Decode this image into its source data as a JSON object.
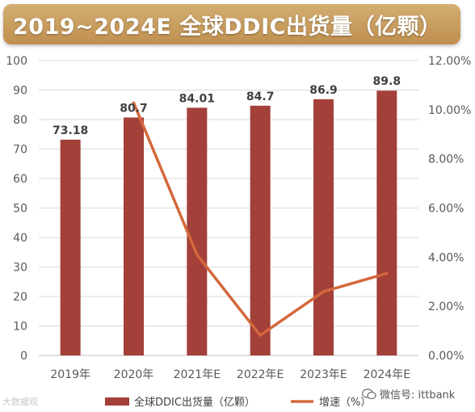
{
  "title": "2019~2024E 全球DDIC出货量（亿颗）",
  "watermark_left": "大数据观",
  "watermark_right": "微信号: ittbank",
  "colors": {
    "bar": "#a3403a",
    "line": "#d4683c",
    "banner": "#c79e5f",
    "grid": "#d9d9d9"
  },
  "chart_data": {
    "type": "bar",
    "categories": [
      "2019年",
      "2020年",
      "2021年E",
      "2022年E",
      "2023年E",
      "2024年E"
    ],
    "series": [
      {
        "name": "全球DDIC出货量（亿颗）",
        "type": "bar",
        "axis": "left",
        "values": [
          73.18,
          80.7,
          84.01,
          84.7,
          86.9,
          89.8
        ],
        "labels": [
          "73.18",
          "80.7",
          "84.01",
          "84.7",
          "86.9",
          "89.8"
        ]
      },
      {
        "name": "增速（%）",
        "type": "line",
        "axis": "right",
        "values": [
          null,
          10.28,
          4.1,
          0.82,
          2.6,
          3.34
        ]
      }
    ],
    "y_left": {
      "min": 0,
      "max": 100,
      "ticks": [
        "0",
        "10",
        "20",
        "30",
        "40",
        "50",
        "60",
        "70",
        "80",
        "90",
        "100"
      ]
    },
    "y_right": {
      "min": 0,
      "max": 12,
      "ticks": [
        "0.00%",
        "2.00%",
        "4.00%",
        "6.00%",
        "8.00%",
        "10.00%",
        "12.00%"
      ]
    },
    "grid": true,
    "legend_position": "bottom"
  }
}
